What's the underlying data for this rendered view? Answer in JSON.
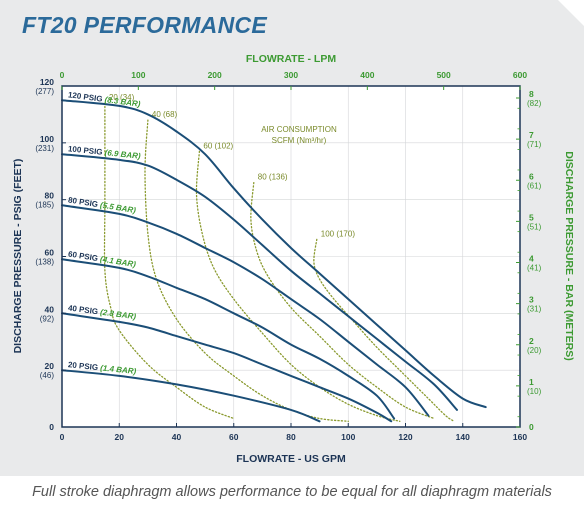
{
  "title": "FT20 PERFORMANCE",
  "caption": "Full stroke diaphragm allows performance to be equal for all diaphragm materials",
  "chart_data": {
    "type": "line",
    "title": "FT20 PERFORMANCE",
    "xlabel": "FLOWRATE - US GPM",
    "x2label": "FLOWRATE - LPM",
    "ylabel": "DISCHARGE PRESSURE - PSIG (FEET)",
    "y2label": "DISCHARGE PRESSURE - BAR (METERS)",
    "xlim": [
      0,
      160
    ],
    "ylim": [
      0,
      120
    ],
    "x_ticks": [
      "0",
      "20",
      "40",
      "60",
      "80",
      "100",
      "120",
      "140",
      "160"
    ],
    "x2_ticks": [
      "0",
      "100",
      "200",
      "300",
      "400",
      "500",
      "600"
    ],
    "y_ticks": [
      {
        "v": "0",
        "sub": ""
      },
      {
        "v": "20",
        "sub": "(46)"
      },
      {
        "v": "40",
        "sub": "(92)"
      },
      {
        "v": "60",
        "sub": "(138)"
      },
      {
        "v": "80",
        "sub": "(185)"
      },
      {
        "v": "100",
        "sub": "(231)"
      },
      {
        "v": "120",
        "sub": "(277)"
      }
    ],
    "y2_ticks": [
      {
        "v": "0",
        "sub": ""
      },
      {
        "v": "1",
        "sub": "(10)"
      },
      {
        "v": "2",
        "sub": "(20)"
      },
      {
        "v": "3",
        "sub": "(31)"
      },
      {
        "v": "4",
        "sub": "(41)"
      },
      {
        "v": "5",
        "sub": "(51)"
      },
      {
        "v": "6",
        "sub": "(61)"
      },
      {
        "v": "7",
        "sub": "(71)"
      },
      {
        "v": "8",
        "sub": "(82)"
      }
    ],
    "air_title_line1": "AIR CONSUMPTION",
    "air_title_line2": "SCFM (Nm³/hr)",
    "series": [
      {
        "name_a": "120 PSIG",
        "name_b": "(8.3 BAR)",
        "points": [
          [
            0,
            115
          ],
          [
            20,
            113
          ],
          [
            30,
            110
          ],
          [
            40,
            104
          ],
          [
            50,
            96
          ],
          [
            60,
            84
          ],
          [
            70,
            73
          ],
          [
            80,
            63
          ],
          [
            90,
            54
          ],
          [
            100,
            45
          ],
          [
            110,
            36
          ],
          [
            120,
            27
          ],
          [
            130,
            18
          ],
          [
            140,
            10
          ],
          [
            148,
            7
          ]
        ]
      },
      {
        "name_a": "100 PSIG",
        "name_b": "(6.9 BAR)",
        "points": [
          [
            0,
            96
          ],
          [
            20,
            94
          ],
          [
            30,
            92
          ],
          [
            40,
            87
          ],
          [
            50,
            81
          ],
          [
            60,
            73
          ],
          [
            70,
            64
          ],
          [
            80,
            55
          ],
          [
            90,
            47
          ],
          [
            100,
            39
          ],
          [
            110,
            31
          ],
          [
            120,
            23
          ],
          [
            130,
            15
          ],
          [
            138,
            6
          ]
        ]
      },
      {
        "name_a": "80 PSIG",
        "name_b": "(5.5 BAR)",
        "points": [
          [
            0,
            78
          ],
          [
            20,
            75
          ],
          [
            30,
            72
          ],
          [
            40,
            68
          ],
          [
            50,
            63
          ],
          [
            60,
            58
          ],
          [
            70,
            52
          ],
          [
            80,
            45
          ],
          [
            90,
            38
          ],
          [
            100,
            30
          ],
          [
            110,
            22
          ],
          [
            120,
            14
          ],
          [
            128,
            4
          ]
        ]
      },
      {
        "name_a": "60 PSIG",
        "name_b": "(4.1 BAR)",
        "points": [
          [
            0,
            59
          ],
          [
            20,
            56
          ],
          [
            30,
            53
          ],
          [
            40,
            49
          ],
          [
            50,
            45
          ],
          [
            60,
            40
          ],
          [
            70,
            35
          ],
          [
            80,
            29
          ],
          [
            90,
            24
          ],
          [
            100,
            18
          ],
          [
            110,
            11
          ],
          [
            116,
            3
          ]
        ]
      },
      {
        "name_a": "40 PSIG",
        "name_b": "(2.8 BAR)",
        "points": [
          [
            0,
            40
          ],
          [
            20,
            37
          ],
          [
            30,
            35
          ],
          [
            40,
            32
          ],
          [
            50,
            29
          ],
          [
            60,
            26
          ],
          [
            70,
            22
          ],
          [
            80,
            18
          ],
          [
            90,
            14
          ],
          [
            100,
            10
          ],
          [
            110,
            5
          ],
          [
            115,
            2
          ]
        ]
      },
      {
        "name_a": "20 PSIG",
        "name_b": "(1.4 BAR)",
        "points": [
          [
            0,
            20
          ],
          [
            20,
            18
          ],
          [
            40,
            15
          ],
          [
            60,
            11
          ],
          [
            80,
            6
          ],
          [
            90,
            2
          ]
        ]
      }
    ],
    "air_curves": [
      {
        "label": "20 (34)",
        "points": [
          [
            15,
            114
          ],
          [
            15,
            80
          ],
          [
            15,
            55
          ],
          [
            17,
            42
          ],
          [
            20,
            34
          ],
          [
            30,
            22
          ],
          [
            40,
            14
          ],
          [
            50,
            7
          ],
          [
            60,
            3
          ]
        ]
      },
      {
        "label": "40 (68)",
        "points": [
          [
            30,
            108
          ],
          [
            29,
            90
          ],
          [
            30,
            68
          ],
          [
            33,
            52
          ],
          [
            40,
            38
          ],
          [
            50,
            26
          ],
          [
            60,
            18
          ],
          [
            70,
            11
          ],
          [
            80,
            6
          ],
          [
            90,
            3
          ],
          [
            100,
            2
          ]
        ]
      },
      {
        "label": "60 (102)",
        "points": [
          [
            48,
            97
          ],
          [
            47,
            82
          ],
          [
            49,
            68
          ],
          [
            53,
            56
          ],
          [
            60,
            45
          ],
          [
            70,
            33
          ],
          [
            80,
            22
          ],
          [
            90,
            14
          ],
          [
            100,
            8
          ],
          [
            110,
            4
          ],
          [
            118,
            2
          ]
        ]
      },
      {
        "label": "80 (136)",
        "points": [
          [
            67,
            86
          ],
          [
            66,
            73
          ],
          [
            68,
            62
          ],
          [
            72,
            53
          ],
          [
            80,
            42
          ],
          [
            90,
            32
          ],
          [
            100,
            22
          ],
          [
            110,
            14
          ],
          [
            120,
            7
          ],
          [
            130,
            3
          ]
        ]
      },
      {
        "label": "100 (170)",
        "points": [
          [
            89,
            66
          ],
          [
            88,
            58
          ],
          [
            90,
            52
          ],
          [
            95,
            45
          ],
          [
            102,
            37
          ],
          [
            110,
            28
          ],
          [
            120,
            18
          ],
          [
            128,
            10
          ],
          [
            134,
            4
          ],
          [
            137,
            2
          ]
        ]
      }
    ]
  }
}
